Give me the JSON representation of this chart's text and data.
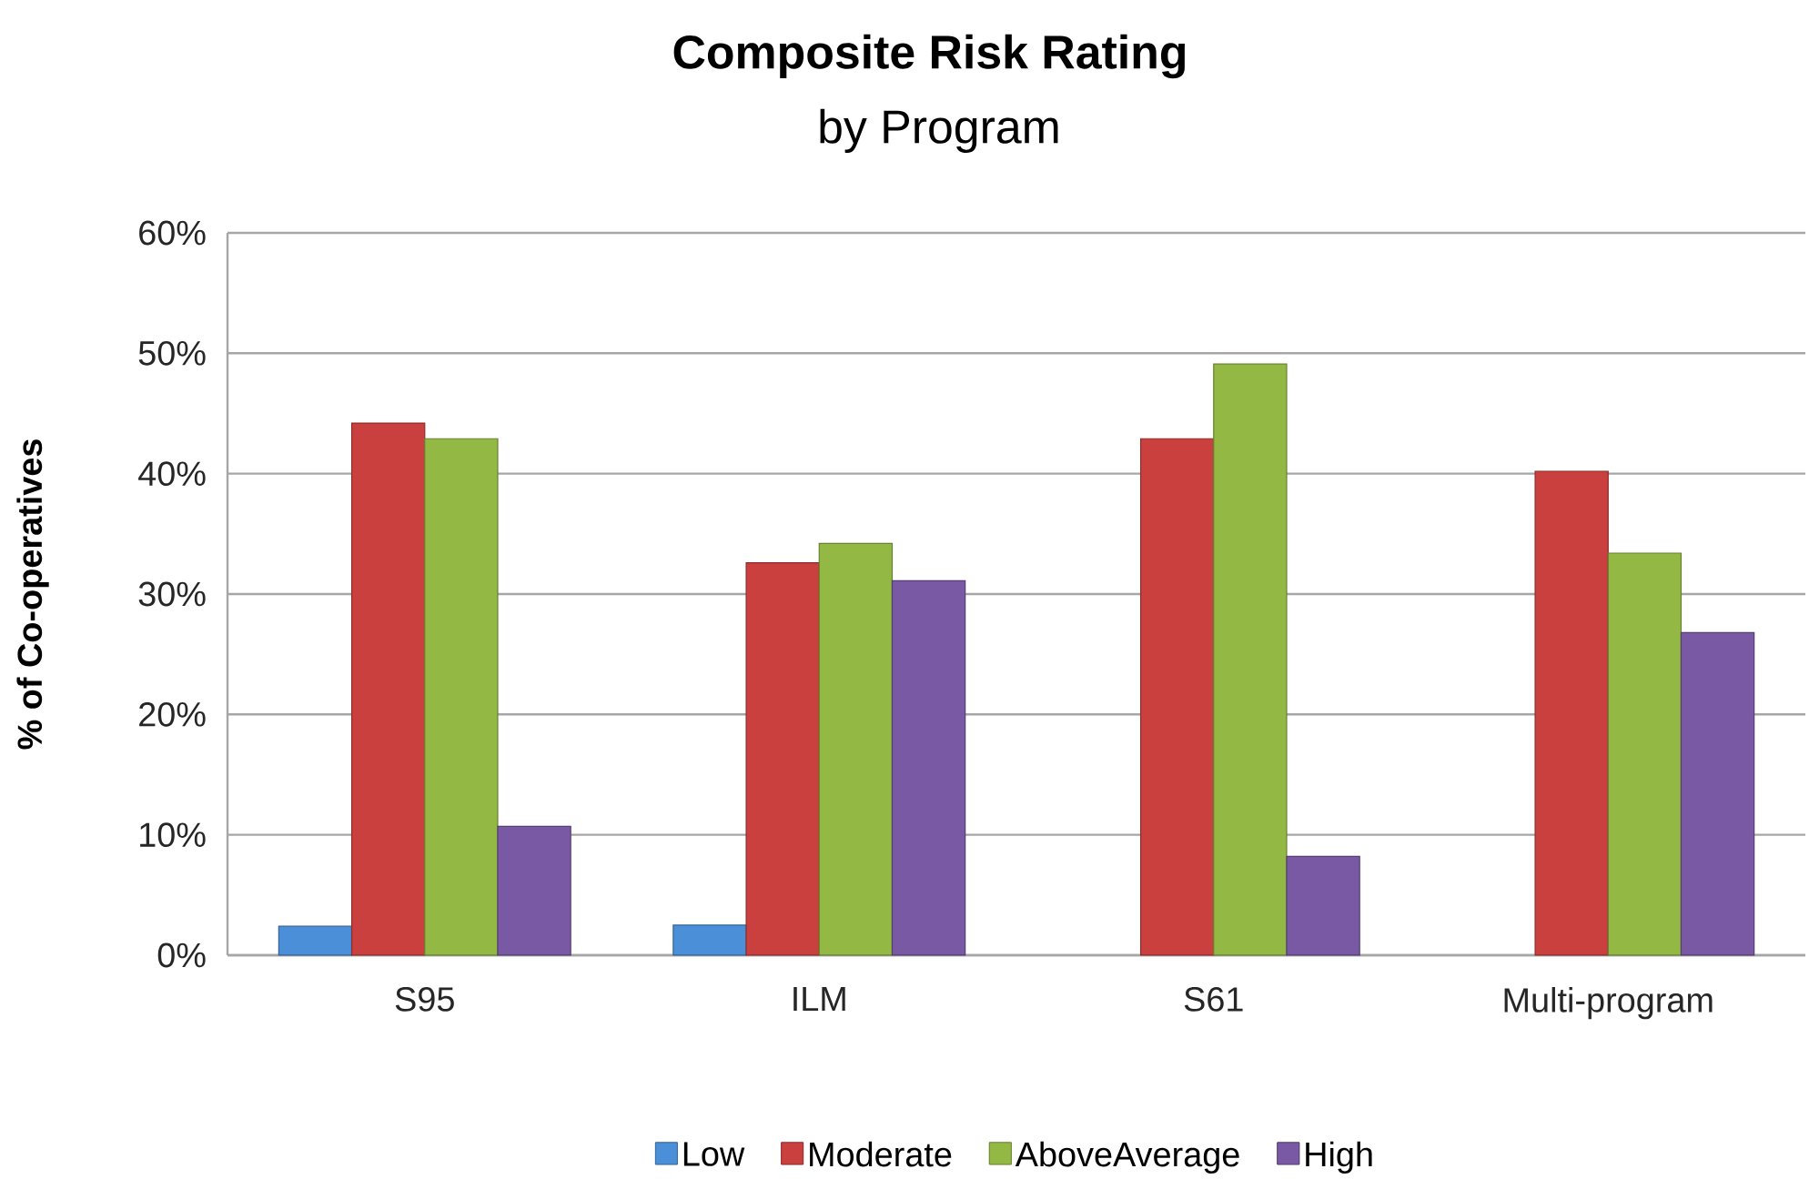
{
  "chart_data": {
    "type": "bar",
    "title": "Composite Risk Rating",
    "subtitle": "by Program",
    "ylabel": "% of Co-operatives",
    "categories": [
      "S95",
      "ILM",
      "S61",
      "Multi-program"
    ],
    "series": [
      {
        "name": "Low",
        "color": "#4a8fd8",
        "values": [
          2.4,
          2.5,
          null,
          null
        ]
      },
      {
        "name": "Moderate",
        "color": "#c9403e",
        "values": [
          44.2,
          32.6,
          42.9,
          40.2
        ]
      },
      {
        "name": "AboveAverage",
        "color": "#93b944",
        "values": [
          42.9,
          34.2,
          49.1,
          33.4
        ]
      },
      {
        "name": "High",
        "color": "#7a59a4",
        "values": [
          10.7,
          31.1,
          8.2,
          26.8
        ]
      }
    ],
    "ylim": [
      0,
      60
    ],
    "yticks": [
      {
        "value": 0,
        "label": "0%"
      },
      {
        "value": 10,
        "label": "10%"
      },
      {
        "value": 20,
        "label": "20%"
      },
      {
        "value": 30,
        "label": "30%"
      },
      {
        "value": 40,
        "label": "40%"
      },
      {
        "value": 50,
        "label": "50%"
      },
      {
        "value": 60,
        "label": "60%"
      }
    ],
    "grid": "y",
    "legend": "bottom"
  }
}
